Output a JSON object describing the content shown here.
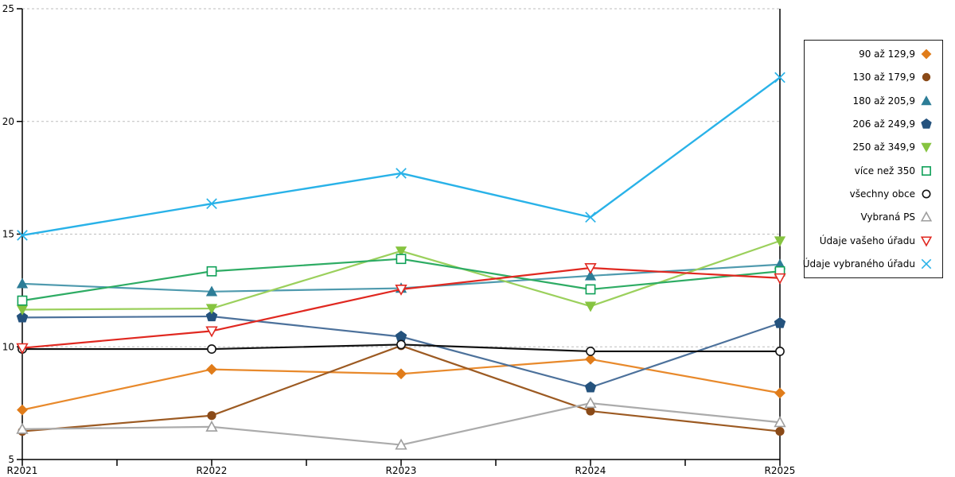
{
  "chart_data": {
    "type": "line",
    "title": "",
    "xlabel": "",
    "ylabel": "",
    "x_categories": [
      "R2021",
      "R2022",
      "R2023",
      "R2024",
      "R2025"
    ],
    "ylim": [
      5,
      25
    ],
    "yticks": [
      5,
      10,
      15,
      20,
      25
    ],
    "grid": "horizontal-dashed",
    "grid_color": "#bdbdbd",
    "axis_color": "#000000",
    "legend_position": "right-outside",
    "series": [
      {
        "name": "90 až 129,9",
        "marker": "diamond",
        "open": false,
        "color": "#e07c1a",
        "line_color": "#e8892b",
        "values": [
          7.2,
          9.0,
          8.8,
          9.45,
          7.95
        ]
      },
      {
        "name": "130 až 179,9",
        "marker": "circle",
        "open": false,
        "color": "#8a4a18",
        "line_color": "#9c5a22",
        "values": [
          6.25,
          6.95,
          10.05,
          7.15,
          6.25
        ]
      },
      {
        "name": "180 až 205,9",
        "marker": "triangle-up",
        "open": false,
        "color": "#2d7d97",
        "line_color": "#4f9aae",
        "values": [
          12.8,
          12.45,
          12.6,
          13.15,
          13.65
        ]
      },
      {
        "name": "206 až 249,9",
        "marker": "pentagon",
        "open": false,
        "color": "#24527d",
        "line_color": "#4c719b",
        "values": [
          11.3,
          11.35,
          10.45,
          8.2,
          11.05
        ]
      },
      {
        "name": "250 až 349,9",
        "marker": "triangle-down",
        "open": false,
        "color": "#86c440",
        "line_color": "#9bd05c",
        "values": [
          11.65,
          11.7,
          14.25,
          11.8,
          14.7
        ]
      },
      {
        "name": "více než 350",
        "marker": "square",
        "open": true,
        "color": "#0fa058",
        "line_color": "#2eac64",
        "values": [
          12.05,
          13.35,
          13.9,
          12.55,
          13.35
        ]
      },
      {
        "name": "všechny obce",
        "marker": "circle",
        "open": true,
        "color": "#111111",
        "line_color": "#111111",
        "values": [
          9.9,
          9.9,
          10.1,
          9.8,
          9.8
        ]
      },
      {
        "name": "Vybraná PS",
        "marker": "triangle-up",
        "open": true,
        "color": "#9e9e9e",
        "line_color": "#ababab",
        "values": [
          6.35,
          6.45,
          5.65,
          7.5,
          6.65
        ]
      },
      {
        "name": "Údaje vašeho úřadu",
        "marker": "triangle-down",
        "open": true,
        "color": "#e02820",
        "line_color": "#e02820",
        "values": [
          9.95,
          10.7,
          12.55,
          13.5,
          13.05
        ]
      },
      {
        "name": "Údaje vybraného úřadu",
        "marker": "x",
        "open": true,
        "color": "#29b2e8",
        "line_color": "#29b2e8",
        "values": [
          14.95,
          16.35,
          17.7,
          15.75,
          21.95
        ]
      }
    ]
  }
}
